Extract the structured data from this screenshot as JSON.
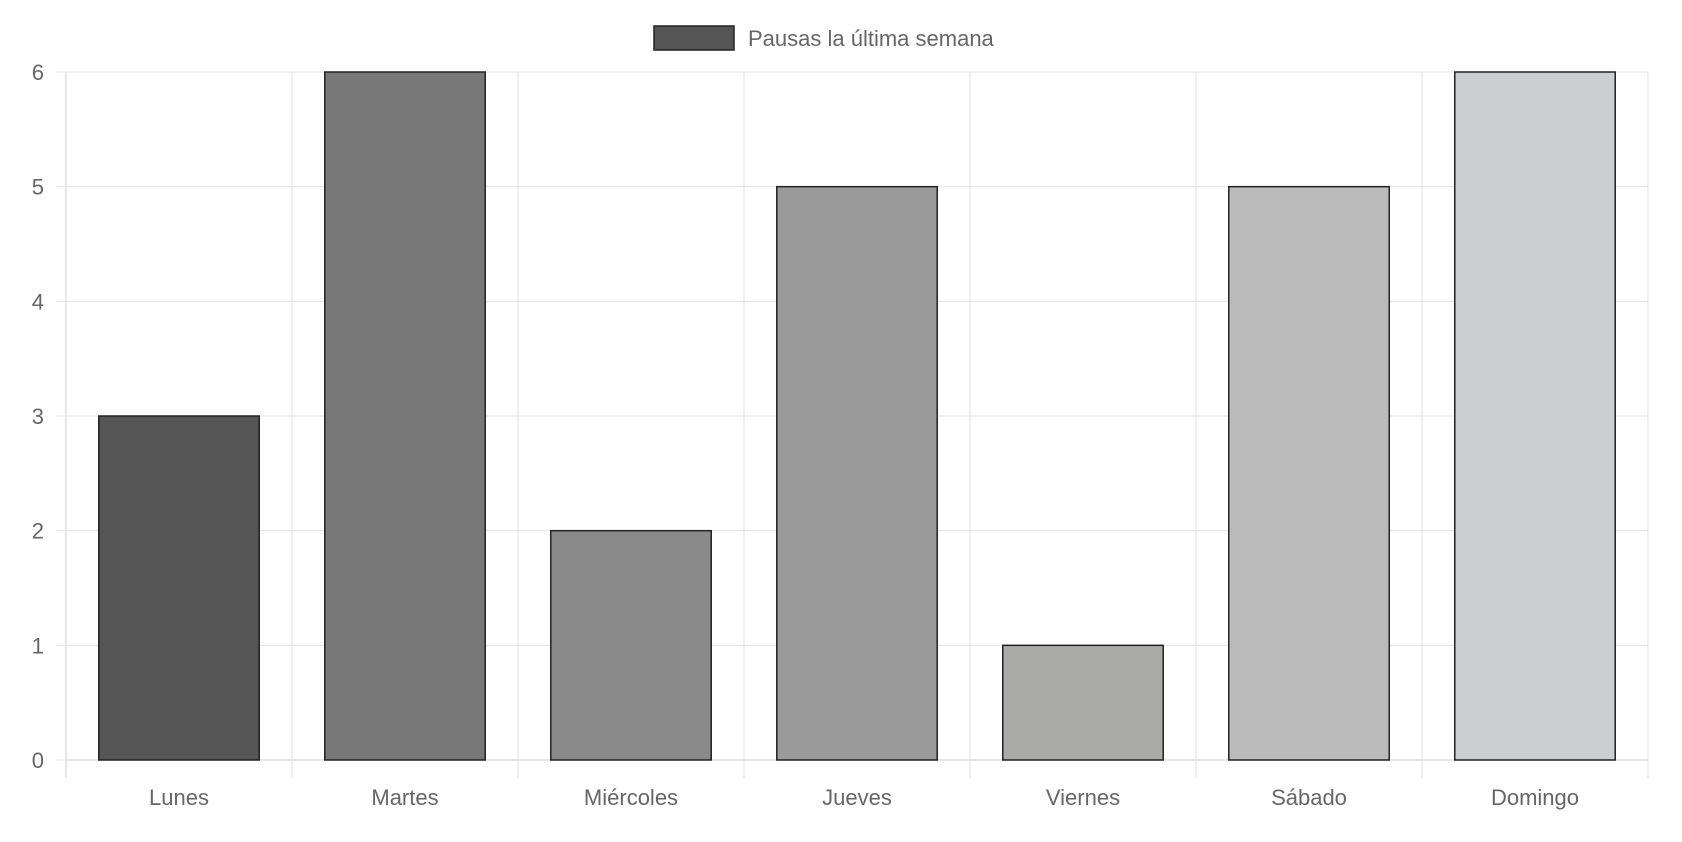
{
  "chart_data": {
    "type": "bar",
    "legend": {
      "label": "Pausas la última semana",
      "swatch_color": "#555555",
      "position": "top-center"
    },
    "categories": [
      "Lunes",
      "Martes",
      "Miércoles",
      "Jueves",
      "Viernes",
      "Sábado",
      "Domingo"
    ],
    "series": [
      {
        "name": "Pausas la última semana",
        "values": [
          3,
          6,
          2,
          5,
          1,
          5,
          6
        ]
      }
    ],
    "bar_colors": [
      "#555555",
      "#787878",
      "#8a8a8a",
      "#9a9a9a",
      "#abacaa",
      "#bbbbbb",
      "#cdced2"
    ],
    "ylim": [
      0,
      6
    ],
    "yticks": [
      0,
      1,
      2,
      3,
      4,
      5,
      6
    ],
    "grid": true,
    "colors": {
      "grid": "#e2e2e2",
      "axis": "#cfcfcf",
      "tick_text": "#666666",
      "bar_border": "#222222"
    }
  }
}
